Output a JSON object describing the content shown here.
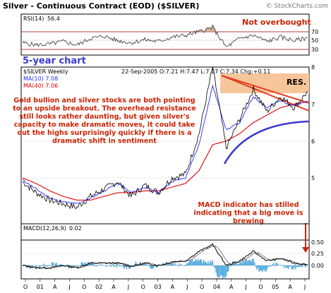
{
  "header": {
    "title": "Silver - Continuous Contract (EOD) ($SILVER)",
    "credit": "© StockCharts.com"
  },
  "colors": {
    "panel_border": "#000000",
    "price_line": "#000000",
    "ma10": "#2a2aff",
    "ma40": "#e00000",
    "rsi_line": "#333333",
    "rsi_fill": "#c8a080",
    "annotation_red": "#cc2200",
    "annotation_blue": "#3a3acc",
    "res_box": "#f7c59a",
    "trend_red": "#e04020",
    "trend_blue": "#3a3acc",
    "macd_hist": "#5aaee0",
    "plot_bg": "#ffffff"
  },
  "rsi_panel": {
    "label": "RSI(14)",
    "value": "56.4",
    "levels": [
      "70",
      "50",
      "30"
    ],
    "annotation": "Not overbought",
    "chart_label": "5-year chart"
  },
  "price_panel": {
    "symbol_label": "$SILVER Weekly",
    "ma10_label": "MA(10) 7.08",
    "ma40_label": "MA(40) 7.06",
    "quote": "22-Sep-2005 O:7.21 H:7.47 L:7.17 C:7.34 Chg:+0.11",
    "y_ticks": [
      "8",
      "7",
      "6",
      "5"
    ],
    "resistance_label": "RES.",
    "annotation_main": "Gold bullion and silver stocks are both pointing to an upside breakout. The overhead resistance still looks rather daunting, but given silver's capacity to make dramatic moves, it could take out the highs surprisingly quickly if there is a dramatic shift in sentiment",
    "annotation_macd": "MACD indicator has stilled indicating that a big move is brewing"
  },
  "macd_panel": {
    "label": "MACD(12,26,9)",
    "value": "0.02",
    "y_ticks": [
      "0.50",
      "0.25",
      "0.00"
    ]
  },
  "x_axis": {
    "ticks": [
      "O",
      "01",
      "A",
      "J",
      "O",
      "02",
      "A",
      "J",
      "O",
      "03",
      "A",
      "J",
      "O",
      "04",
      "A",
      "J",
      "O",
      "05",
      "A",
      "J"
    ]
  },
  "chart_data": [
    {
      "type": "line",
      "title": "Silver - Continuous Contract (EOD) ($SILVER)",
      "series": [
        {
          "name": "$SILVER Weekly",
          "x": [
            "2000-10",
            "2001-01",
            "2001-04",
            "2001-07",
            "2001-10",
            "2002-01",
            "2002-04",
            "2002-07",
            "2002-10",
            "2003-01",
            "2003-04",
            "2003-07",
            "2003-10",
            "2004-01",
            "2004-04",
            "2004-05",
            "2004-07",
            "2004-10",
            "2005-01",
            "2005-04",
            "2005-07",
            "2005-09"
          ],
          "values": [
            4.9,
            4.6,
            4.4,
            4.3,
            4.2,
            4.5,
            4.7,
            4.9,
            4.5,
            4.8,
            4.6,
            5.0,
            5.1,
            6.2,
            8.0,
            5.8,
            6.6,
            7.4,
            6.8,
            7.2,
            6.9,
            7.34
          ]
        },
        {
          "name": "MA(10)",
          "values": [
            4.95,
            4.7,
            4.45,
            4.35,
            4.3,
            4.45,
            4.65,
            4.85,
            4.6,
            4.75,
            4.6,
            4.9,
            5.0,
            5.9,
            7.5,
            6.3,
            6.5,
            7.2,
            6.9,
            7.1,
            6.95,
            7.08
          ]
        },
        {
          "name": "MA(40)",
          "values": [
            5.0,
            4.85,
            4.65,
            4.5,
            4.4,
            4.4,
            4.5,
            4.6,
            4.6,
            4.65,
            4.65,
            4.75,
            4.85,
            5.2,
            5.9,
            6.0,
            6.2,
            6.5,
            6.7,
            6.9,
            7.0,
            7.06
          ]
        }
      ],
      "y_ticks": [
        5,
        6,
        7,
        8
      ],
      "ylim": [
        4.0,
        8.2
      ]
    },
    {
      "type": "line",
      "series": [
        {
          "name": "RSI(14)",
          "values": [
            45,
            40,
            42,
            48,
            40,
            55,
            60,
            50,
            45,
            52,
            48,
            58,
            62,
            70,
            80,
            35,
            55,
            62,
            48,
            58,
            50,
            56.4
          ]
        }
      ],
      "y_ticks": [
        30,
        50,
        70
      ],
      "ylim": [
        20,
        85
      ]
    },
    {
      "type": "line",
      "series": [
        {
          "name": "MACD(12,26,9)",
          "values": [
            0.0,
            -0.05,
            -0.05,
            0.0,
            -0.05,
            0.05,
            0.05,
            0.05,
            -0.02,
            0.05,
            0.0,
            0.08,
            0.1,
            0.3,
            0.45,
            0.0,
            0.1,
            0.3,
            0.1,
            0.15,
            0.05,
            0.02
          ]
        }
      ],
      "y_ticks": [
        0.0,
        0.25,
        0.5
      ],
      "ylim": [
        -0.2,
        0.6
      ]
    }
  ]
}
